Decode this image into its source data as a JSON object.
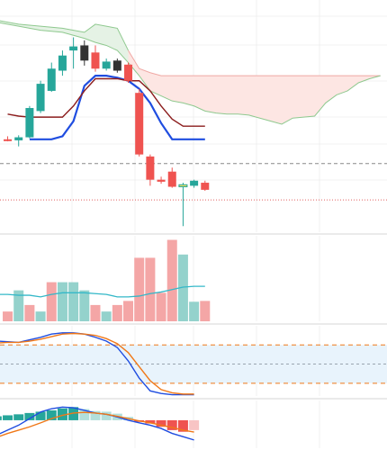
{
  "chart_data": [
    {
      "type": "candlestick",
      "panel": "price",
      "index": [
        0,
        1,
        2,
        3,
        4,
        5,
        6,
        7,
        8,
        9,
        10,
        11,
        12,
        13,
        14,
        15,
        16,
        17,
        18
      ],
      "candles": [
        {
          "open": 112.0,
          "high": 115.0,
          "low": 110.0,
          "close": 111.0
        },
        {
          "open": 111.0,
          "high": 116.0,
          "low": 105.0,
          "close": 114.0
        },
        {
          "open": 114.0,
          "high": 145.0,
          "low": 113.0,
          "close": 143.0
        },
        {
          "open": 140.0,
          "high": 170.0,
          "low": 138.0,
          "close": 167.0
        },
        {
          "open": 160.0,
          "high": 188.0,
          "low": 159.0,
          "close": 182.0
        },
        {
          "open": 180.0,
          "high": 200.0,
          "low": 175.0,
          "close": 195.0
        },
        {
          "open": 200.0,
          "high": 213.0,
          "low": 182.0,
          "close": 204.0
        },
        {
          "open": 205.0,
          "high": 210.0,
          "low": 185.0,
          "close": 190.0
        },
        {
          "open": 198.0,
          "high": 205.0,
          "low": 179.0,
          "close": 182.0
        },
        {
          "open": 182.0,
          "high": 192.0,
          "low": 180.0,
          "close": 189.0
        },
        {
          "open": 190.0,
          "high": 192.0,
          "low": 178.0,
          "close": 180.0
        },
        {
          "open": 186.0,
          "high": 188.0,
          "low": 168.0,
          "close": 170.0
        },
        {
          "open": 158.0,
          "high": 162.0,
          "low": 95.0,
          "close": 97.0
        },
        {
          "open": 95.0,
          "high": 97.0,
          "low": 66.0,
          "close": 72.0
        },
        {
          "open": 72.0,
          "high": 75.0,
          "low": 68.0,
          "close": 70.0
        },
        {
          "open": 80.0,
          "high": 84.0,
          "low": 64.0,
          "close": 65.0
        },
        {
          "open": 65.0,
          "high": 69.0,
          "low": 26.0,
          "close": 67.0
        },
        {
          "open": 66.0,
          "high": 72.0,
          "low": 64.0,
          "close": 71.0
        },
        {
          "open": 69.0,
          "high": 71.0,
          "low": 61.0,
          "close": 62.0
        }
      ],
      "colors": {
        "up": "#26a69a",
        "down": "#ef5350",
        "selected_up": "#f3df5f",
        "dark": "#333333"
      },
      "lines": [
        {
          "role": "conversion",
          "color": "#1f4de0",
          "values": [
            null,
            null,
            112,
            112,
            112,
            115,
            130,
            165,
            175,
            175,
            173,
            170,
            162,
            148,
            128,
            112,
            112,
            112,
            112
          ]
        },
        {
          "role": "base",
          "color": "#8b1c1c",
          "values": [
            137,
            135,
            134,
            134,
            134,
            134,
            145,
            160,
            172,
            172,
            172,
            170,
            170,
            160,
            145,
            132,
            125,
            125,
            125
          ]
        }
      ],
      "cloud": {
        "x": [
          -3,
          -1,
          1,
          3,
          5,
          6,
          7,
          8,
          9,
          10,
          11,
          12,
          13,
          14,
          15,
          16,
          17,
          18,
          19,
          20,
          21,
          22,
          23,
          24,
          25,
          26,
          28,
          29,
          30,
          31,
          32,
          33,
          34
        ],
        "a": [
          236,
          230,
          226,
          224,
          222,
          220,
          218,
          226,
          224,
          222,
          200,
          182,
          178,
          175,
          175,
          175,
          175,
          175,
          175,
          175,
          175,
          175,
          175,
          175,
          175,
          175,
          175,
          175,
          175,
          175,
          175,
          175,
          175
        ],
        "b": [
          236,
          228,
          224,
          220,
          218,
          215,
          212,
          208,
          205,
          200,
          188,
          175,
          160,
          155,
          150,
          148,
          145,
          140,
          138,
          137,
          137,
          136,
          133,
          130,
          127,
          133,
          135,
          148,
          156,
          160,
          168,
          172,
          175
        ],
        "colors": {
          "bull_fill": "#e5f2e5",
          "bull_line": "#8fc98f",
          "bear_fill": "#fde6e3",
          "bear_line": "#f0a8a4"
        }
      },
      "reference_lines": [
        {
          "value": 88,
          "style": "dashed",
          "color": "#888888"
        },
        {
          "value": 52,
          "style": "dotted",
          "color": "#e06060"
        }
      ],
      "ylim": [
        20,
        250
      ],
      "xlim": [
        -0.7,
        34.6
      ]
    },
    {
      "type": "bar",
      "panel": "volume",
      "values": [
        0.12,
        0.38,
        0.2,
        0.12,
        0.48,
        0.48,
        0.48,
        0.38,
        0.2,
        0.12,
        0.2,
        0.25,
        0.78,
        0.78,
        0.35,
        1.0,
        0.82,
        0.24,
        0.25
      ],
      "directions": [
        "down",
        "up",
        "down",
        "up",
        "down",
        "up",
        "up",
        "up",
        "down",
        "up",
        "down",
        "down",
        "down",
        "down",
        "down",
        "down",
        "up",
        "up",
        "down"
      ],
      "colors": {
        "up": "#94d2cc",
        "down": "#f4a6a6"
      },
      "ma": {
        "color": "#34b8c8",
        "values": [
          0.33,
          0.32,
          0.32,
          0.3,
          0.33,
          0.35,
          0.35,
          0.35,
          0.34,
          0.33,
          0.3,
          0.3,
          0.31,
          0.34,
          0.36,
          0.39,
          0.42,
          0.43,
          0.43
        ]
      },
      "ylim": [
        0,
        1.05
      ]
    },
    {
      "type": "line",
      "panel": "oscillator",
      "series": [
        {
          "role": "fast",
          "color": "#1f4de0",
          "values": [
            85,
            86,
            85,
            84,
            88,
            92,
            97,
            99,
            99,
            97,
            92,
            86,
            76,
            55,
            28,
            8,
            4,
            2,
            2,
            2
          ]
        },
        {
          "role": "slow",
          "color": "#f07818",
          "values": [
            82,
            83,
            84,
            84,
            86,
            89,
            93,
            97,
            98,
            97,
            95,
            90,
            82,
            68,
            46,
            24,
            10,
            5,
            3,
            3
          ]
        }
      ],
      "x": [
        -2,
        -1,
        0,
        1,
        2,
        3,
        4,
        5,
        6,
        7,
        8,
        9,
        10,
        11,
        12,
        13,
        14,
        15,
        16,
        17
      ],
      "levels": [
        80,
        50,
        20
      ],
      "band": {
        "from": 20,
        "to": 80,
        "color": "#e8f3fc"
      },
      "ylim": [
        0,
        110
      ]
    },
    {
      "type": "bar",
      "panel": "macd",
      "histogram": [
        0.1,
        0.12,
        0.15,
        0.18,
        0.22,
        0.26,
        0.3,
        0.36,
        0.4,
        0.34,
        0.28,
        0.26,
        0.2,
        0.1,
        -0.05,
        -0.1,
        -0.2,
        -0.3,
        -0.35,
        -0.3
      ],
      "histogram_colors": {
        "up_strong": "#26a69a",
        "up_weak": "#b2dfdb",
        "down_strong": "#ef5350",
        "down_weak": "#f8c4c4"
      },
      "x": [
        -2,
        -1,
        0,
        1,
        2,
        3,
        4,
        5,
        6,
        7,
        8,
        9,
        10,
        11,
        12,
        13,
        14,
        15,
        16,
        17
      ],
      "series": [
        {
          "role": "macd",
          "color": "#1f4de0",
          "values": [
            -0.58,
            -0.45,
            -0.3,
            -0.15,
            0.05,
            0.25,
            0.35,
            0.4,
            0.38,
            0.3,
            0.22,
            0.18,
            0.1,
            0.0,
            -0.08,
            -0.15,
            -0.25,
            -0.4,
            -0.5,
            -0.6
          ]
        },
        {
          "role": "signal",
          "color": "#f07818",
          "values": [
            -0.6,
            -0.52,
            -0.4,
            -0.3,
            -0.2,
            -0.08,
            0.05,
            0.15,
            0.22,
            0.24,
            0.22,
            0.18,
            0.12,
            0.05,
            -0.02,
            -0.08,
            -0.15,
            -0.22,
            -0.3,
            -0.36
          ]
        }
      ],
      "ylim": [
        -0.85,
        0.6
      ]
    }
  ]
}
